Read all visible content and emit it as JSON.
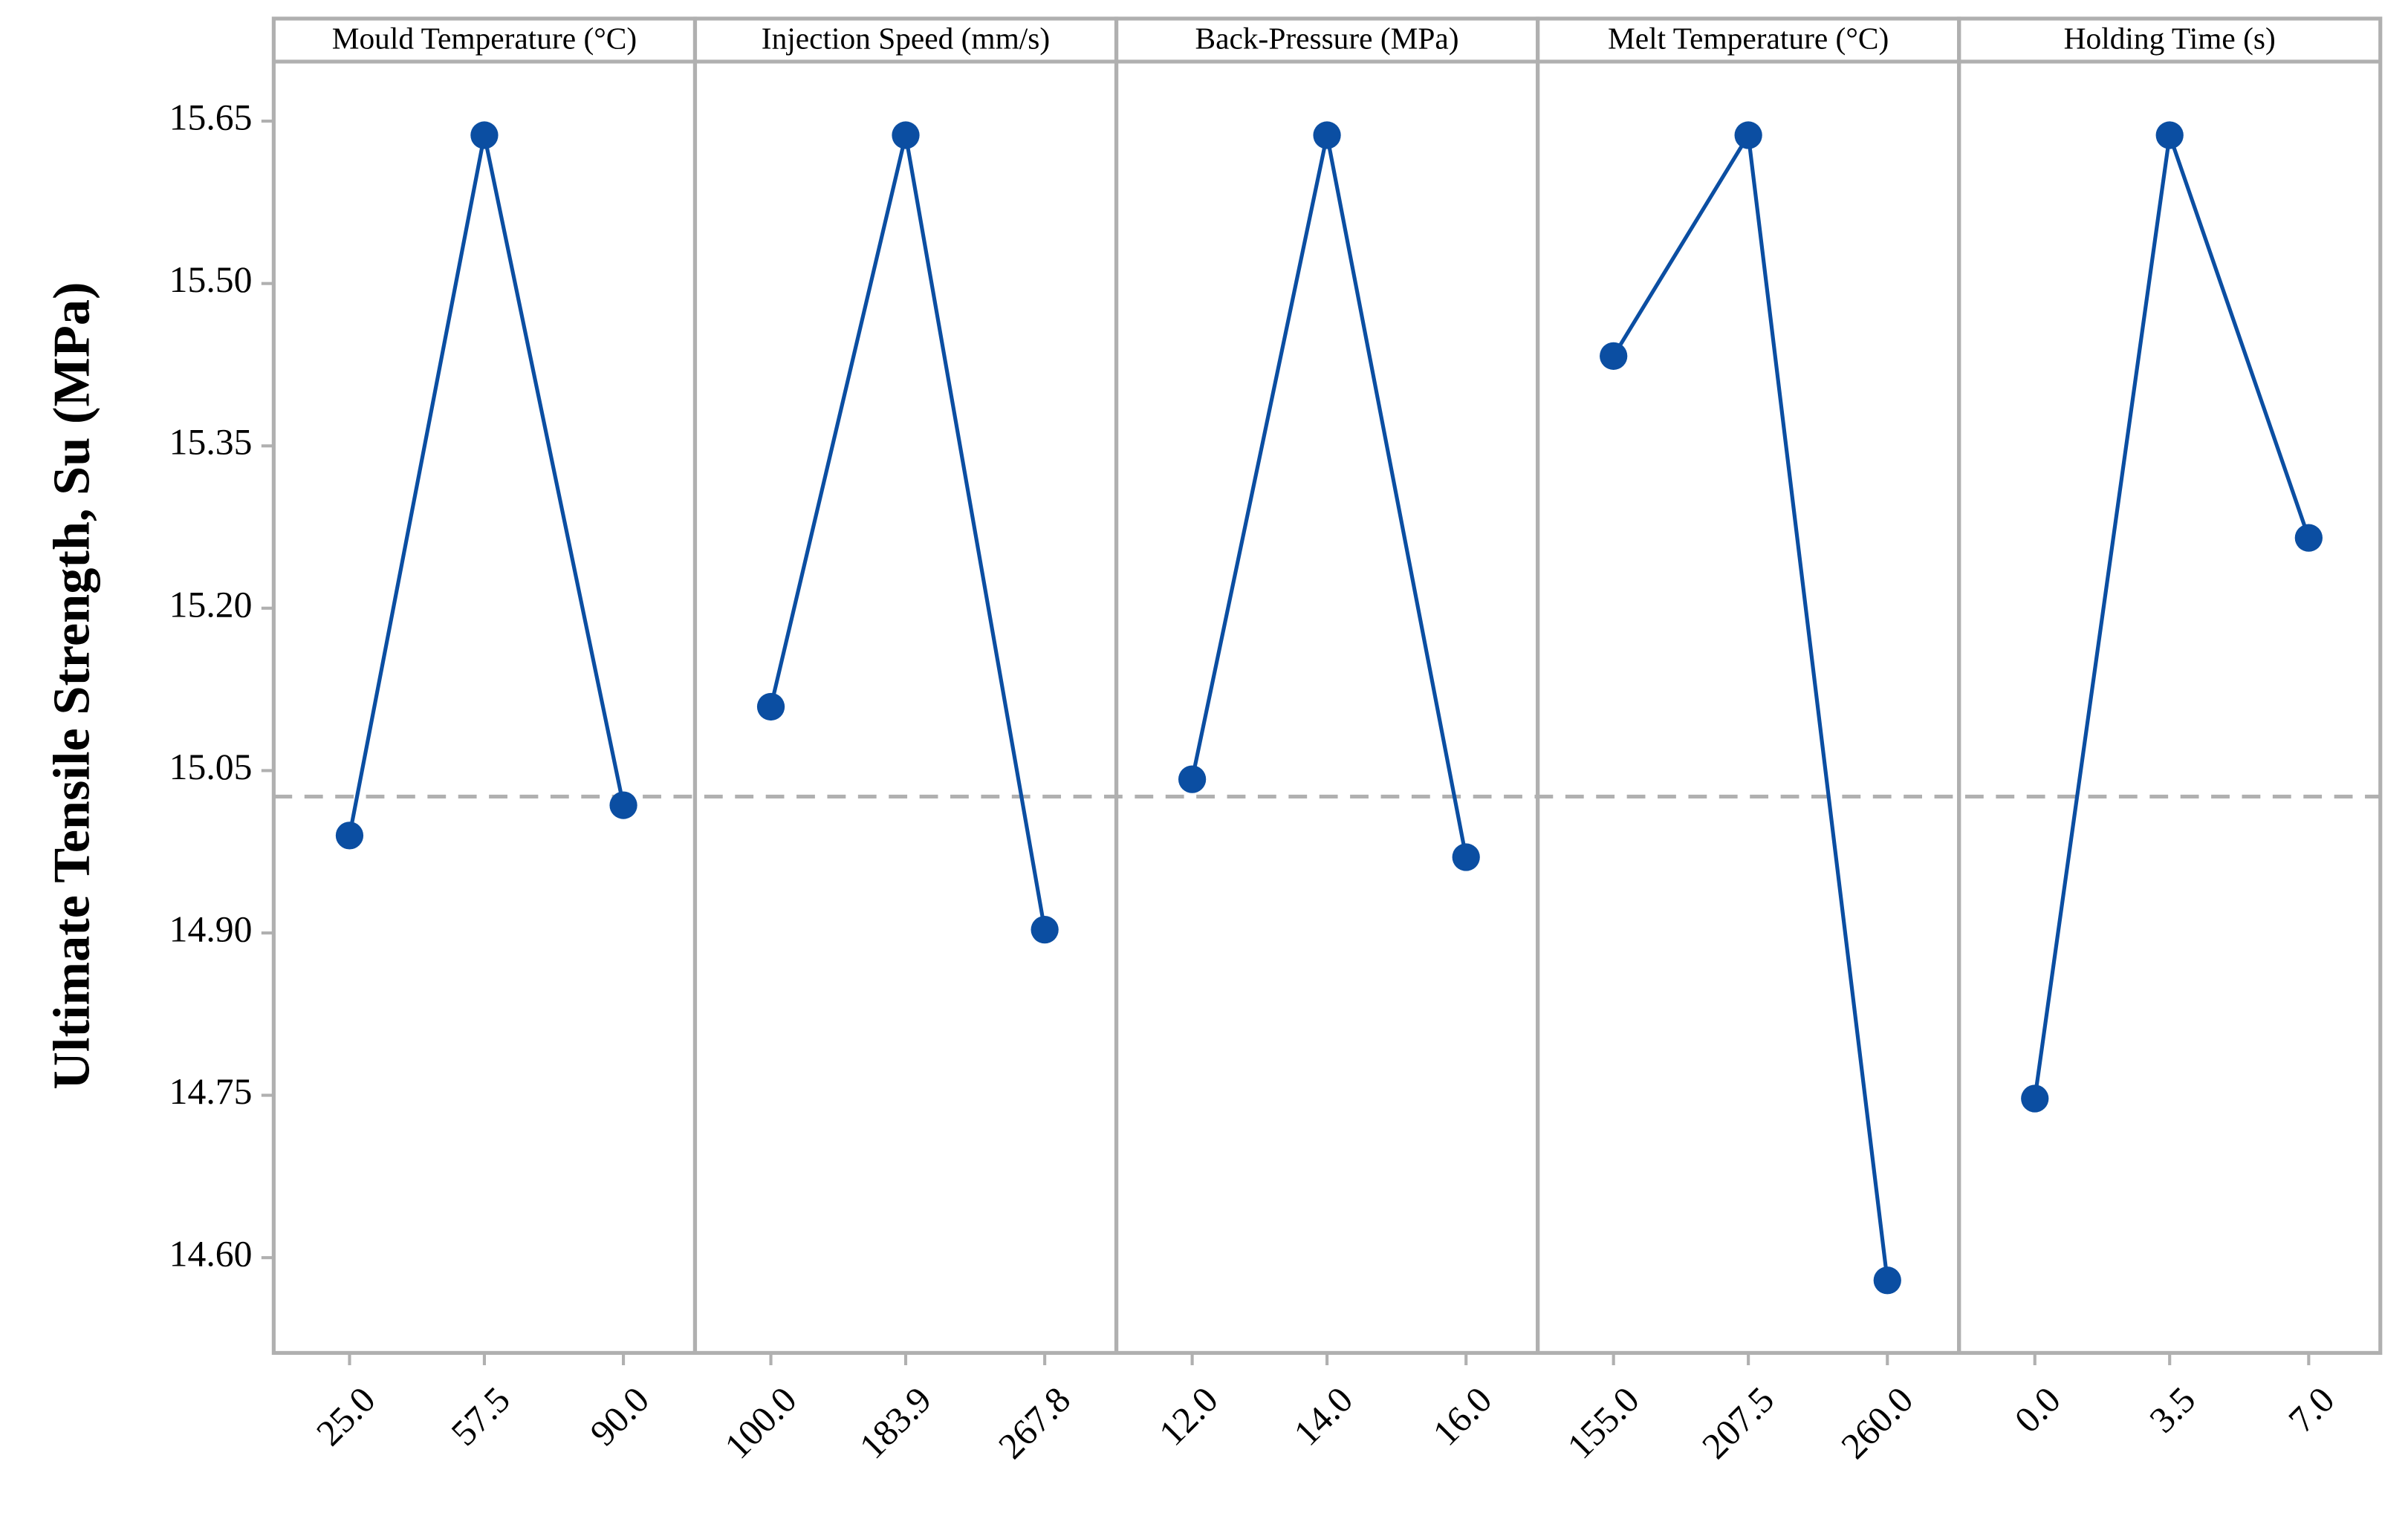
{
  "chart_data": [
    {
      "type": "line",
      "title": "Mould Temperature (°C)",
      "ylabel": "Ultimate Tensile Strength, Su (MPa)",
      "categories": [
        "25.0",
        "57.5",
        "90.0"
      ],
      "values": [
        14.99,
        15.637,
        15.018
      ],
      "color": "#0b4ea2",
      "ylim": [
        14.512,
        15.705
      ],
      "yticks": [
        {
          "value": 14.6,
          "label": "14.60"
        },
        14.75,
        {
          "value": 14.9,
          "label": "14.90"
        },
        15.05,
        {
          "value": 15.2,
          "label": "15.20"
        },
        15.35,
        {
          "value": 15.5,
          "label": "15.50"
        },
        15.65
      ],
      "hline": 15.026
    },
    {
      "type": "line",
      "title": "Injection Speed (mm/s)",
      "categories": [
        "100.0",
        "183.9",
        "267.8"
      ],
      "values": [
        15.109,
        15.637,
        14.903
      ],
      "color": "#0b4ea2",
      "ylim": [
        14.512,
        15.705
      ]
    },
    {
      "type": "line",
      "title": "Back-Pressure (MPa)",
      "categories": [
        "12.0",
        "14.0",
        "16.0"
      ],
      "values": [
        15.042,
        15.637,
        14.97
      ],
      "color": "#0b4ea2",
      "ylim": [
        14.512,
        15.705
      ]
    },
    {
      "type": "line",
      "title": "Melt Temperature (°C)",
      "categories": [
        "155.0",
        "207.5",
        "260.0"
      ],
      "values": [
        15.433,
        15.637,
        14.579
      ],
      "color": "#0b4ea2",
      "ylim": [
        14.512,
        15.705
      ]
    },
    {
      "type": "line",
      "title": "Holding Time (s)",
      "categories": [
        "0.0",
        "3.5",
        "7.0"
      ],
      "values": [
        14.747,
        15.637,
        15.265
      ],
      "color": "#0b4ea2",
      "ylim": [
        14.512,
        15.705
      ]
    }
  ]
}
